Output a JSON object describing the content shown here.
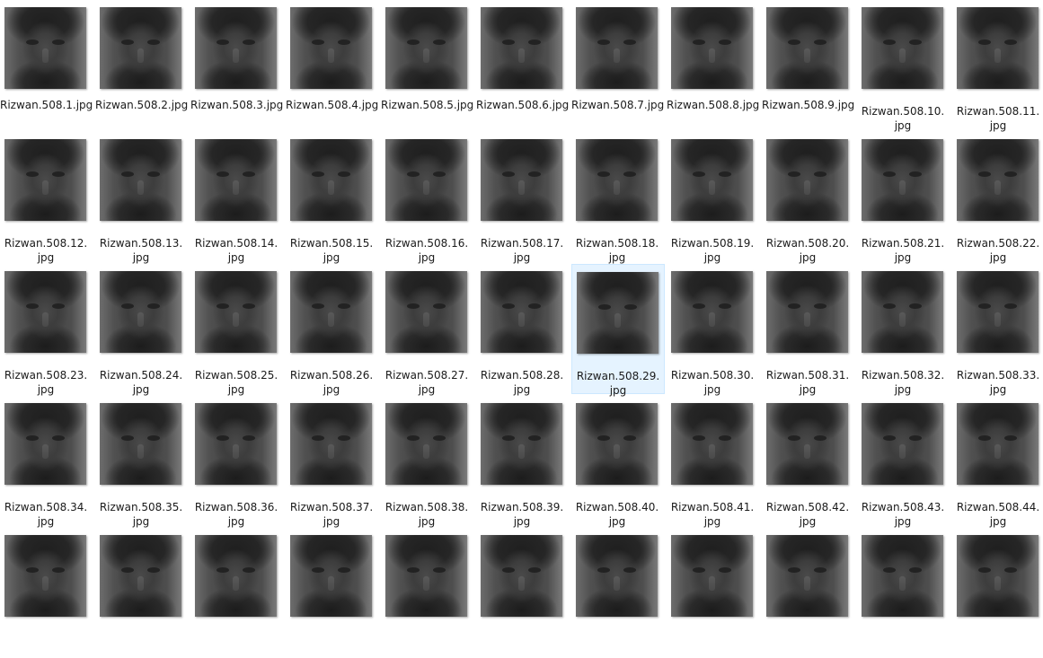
{
  "files": [
    {
      "name": "Rizwan.508.1.jpg"
    },
    {
      "name": "Rizwan.508.2.jpg"
    },
    {
      "name": "Rizwan.508.3.jpg"
    },
    {
      "name": "Rizwan.508.4.jpg"
    },
    {
      "name": "Rizwan.508.5.jpg"
    },
    {
      "name": "Rizwan.508.6.jpg"
    },
    {
      "name": "Rizwan.508.7.jpg"
    },
    {
      "name": "Rizwan.508.8.jpg"
    },
    {
      "name": "Rizwan.508.9.jpg"
    },
    {
      "name": "Rizwan.508.10.jpg"
    },
    {
      "name": "Rizwan.508.11.jpg"
    },
    {
      "name": "Rizwan.508.12.jpg"
    },
    {
      "name": "Rizwan.508.13.jpg"
    },
    {
      "name": "Rizwan.508.14.jpg"
    },
    {
      "name": "Rizwan.508.15.jpg"
    },
    {
      "name": "Rizwan.508.16.jpg"
    },
    {
      "name": "Rizwan.508.17.jpg"
    },
    {
      "name": "Rizwan.508.18.jpg"
    },
    {
      "name": "Rizwan.508.19.jpg"
    },
    {
      "name": "Rizwan.508.20.jpg"
    },
    {
      "name": "Rizwan.508.21.jpg"
    },
    {
      "name": "Rizwan.508.22.jpg"
    },
    {
      "name": "Rizwan.508.23.jpg"
    },
    {
      "name": "Rizwan.508.24.jpg"
    },
    {
      "name": "Rizwan.508.25.jpg"
    },
    {
      "name": "Rizwan.508.26.jpg"
    },
    {
      "name": "Rizwan.508.27.jpg"
    },
    {
      "name": "Rizwan.508.28.jpg"
    },
    {
      "name": "Rizwan.508.29.jpg",
      "selected": true
    },
    {
      "name": "Rizwan.508.30.jpg"
    },
    {
      "name": "Rizwan.508.31.jpg"
    },
    {
      "name": "Rizwan.508.32.jpg"
    },
    {
      "name": "Rizwan.508.33.jpg"
    },
    {
      "name": "Rizwan.508.34.jpg"
    },
    {
      "name": "Rizwan.508.35.jpg"
    },
    {
      "name": "Rizwan.508.36.jpg"
    },
    {
      "name": "Rizwan.508.37.jpg"
    },
    {
      "name": "Rizwan.508.38.jpg"
    },
    {
      "name": "Rizwan.508.39.jpg"
    },
    {
      "name": "Rizwan.508.40.jpg"
    },
    {
      "name": "Rizwan.508.41.jpg"
    },
    {
      "name": "Rizwan.508.42.jpg"
    },
    {
      "name": "Rizwan.508.43.jpg"
    },
    {
      "name": "Rizwan.508.44.jpg"
    },
    {
      "name": ""
    },
    {
      "name": ""
    },
    {
      "name": ""
    },
    {
      "name": ""
    },
    {
      "name": ""
    },
    {
      "name": ""
    },
    {
      "name": ""
    },
    {
      "name": ""
    },
    {
      "name": ""
    },
    {
      "name": ""
    },
    {
      "name": ""
    }
  ],
  "colors": {
    "selection_fill": "#e5f3ff",
    "selection_border": "#cce8ff",
    "label_text": "#1a1a1a"
  }
}
